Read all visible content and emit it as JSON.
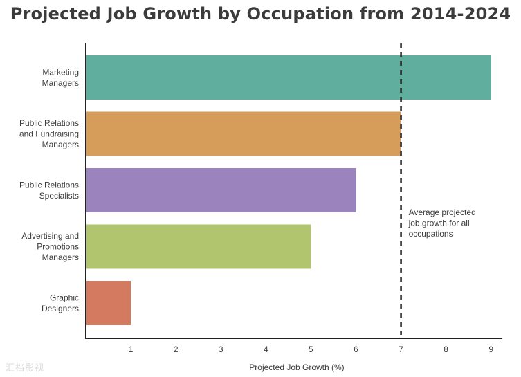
{
  "chart_data": {
    "type": "bar",
    "orientation": "horizontal",
    "title": "Projected Job Growth by Occupation from 2014-2024",
    "xlabel": "Projected Job Growth (%)",
    "ylabel": "",
    "xlim": [
      0,
      9.25
    ],
    "xticks": [
      1,
      2,
      3,
      4,
      5,
      6,
      7,
      8,
      9
    ],
    "grid": false,
    "categories": [
      [
        "Marketing",
        "Managers"
      ],
      [
        "Public Relations",
        "and Fundraising",
        "Managers"
      ],
      [
        "Public Relations",
        "Specialists"
      ],
      [
        "Advertising and",
        "Promotions",
        "Managers"
      ],
      [
        "Graphic",
        "Designers"
      ]
    ],
    "values": [
      9,
      7,
      6,
      5,
      1
    ],
    "colors": [
      "#5fae9e",
      "#d69c5a",
      "#9b84bd",
      "#b1c56f",
      "#d47a60"
    ],
    "reference_line": {
      "value": 7,
      "style": "dashed",
      "color": "#222222",
      "annotation": [
        "Average projected",
        "job growth for all",
        "occupations"
      ]
    }
  },
  "watermark": "汇档影视"
}
